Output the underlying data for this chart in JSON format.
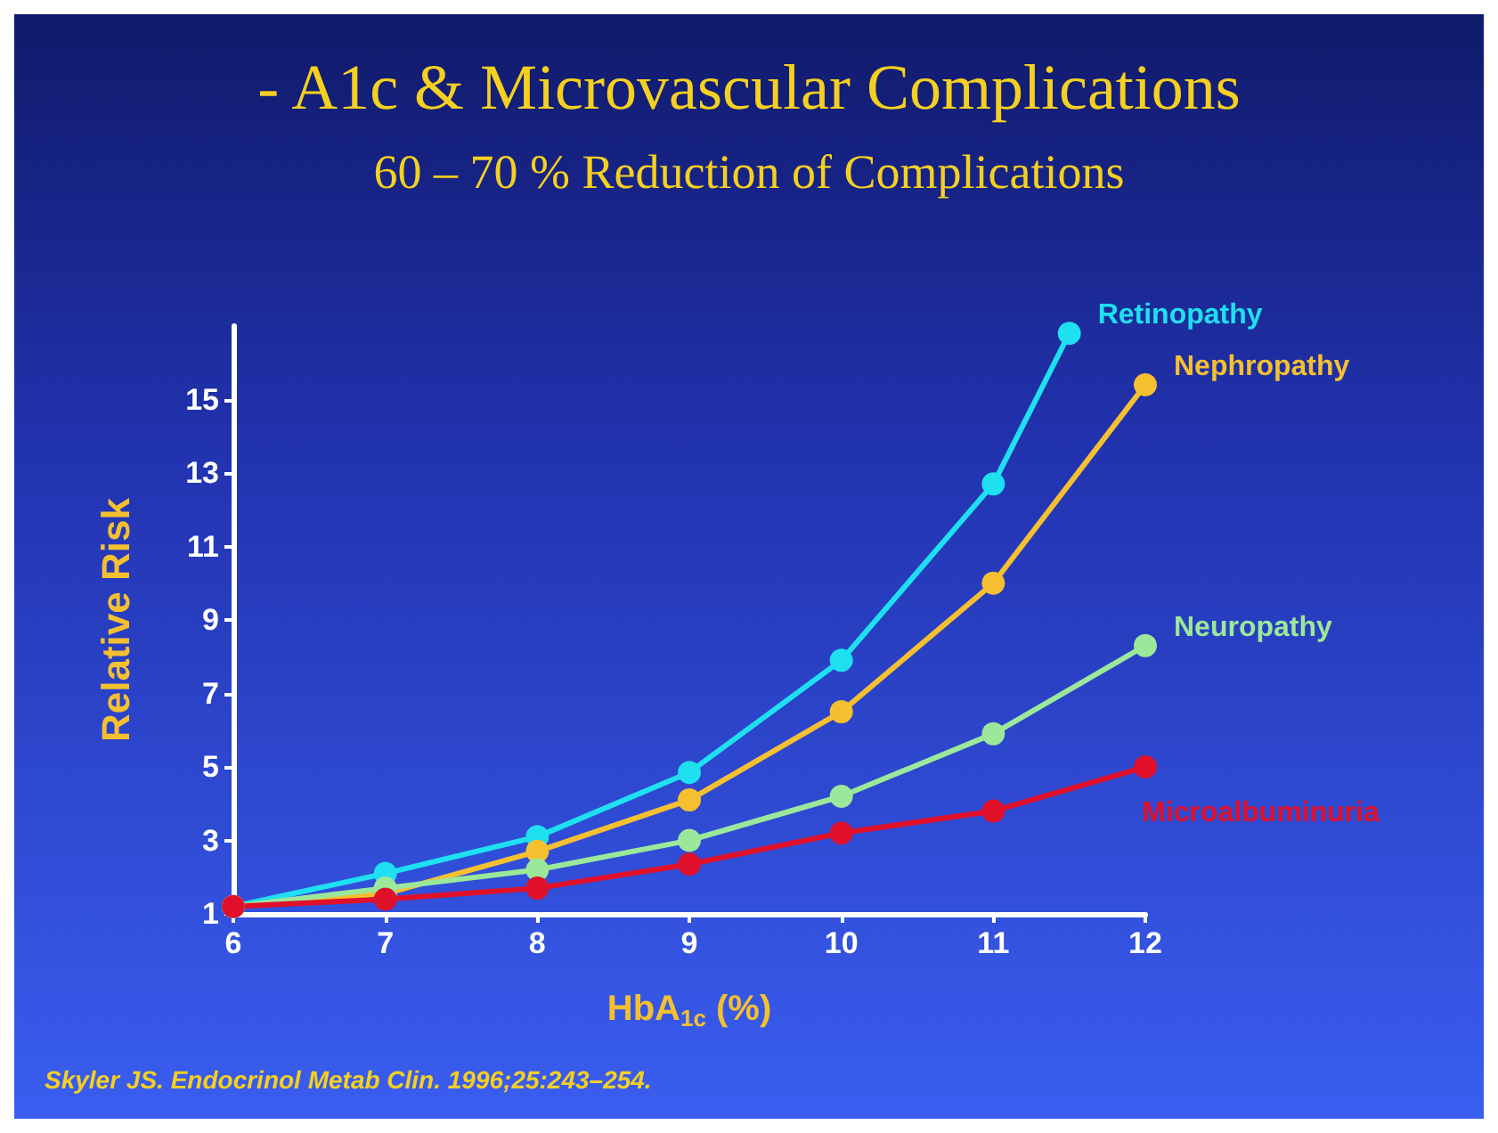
{
  "chart_data": {
    "type": "line",
    "title": "- A1c & Microvascular Complications",
    "subtitle": "60 – 70 % Reduction of Complications",
    "xlabel": "HbA$_{1c}$ (%)",
    "ylabel": "Relative Risk",
    "annotations": [
      "Skyler JS. Endocrinol Metab Clin. 1996;25:243–254."
    ],
    "x": [
      6,
      7,
      8,
      9,
      10,
      11,
      12
    ],
    "series": [
      {
        "name": "Retinopathy",
        "color": "#1ee0f0",
        "x": [
          6,
          7,
          8,
          9,
          10,
          11,
          11.5
        ],
        "values": [
          1.2,
          2.1,
          3.1,
          4.85,
          7.9,
          12.7,
          16.8
        ]
      },
      {
        "name": "Nephropathy",
        "color": "#f5c030",
        "values": [
          1.2,
          1.55,
          2.7,
          4.1,
          6.5,
          10.0,
          15.4
        ]
      },
      {
        "name": "Neuropathy",
        "color": "#9be89a",
        "values": [
          1.2,
          1.7,
          2.2,
          3.0,
          4.2,
          5.9,
          8.3
        ]
      },
      {
        "name": "Microalbuminuria",
        "color": "#e0102a",
        "values": [
          1.2,
          1.4,
          1.7,
          2.35,
          3.2,
          3.8,
          5.0
        ]
      }
    ],
    "xlim": [
      6,
      12
    ],
    "xticks": [
      6,
      7,
      8,
      9,
      10,
      11,
      12
    ],
    "ylim": [
      1,
      17
    ],
    "yticks": [
      1,
      3,
      5,
      7,
      9,
      11,
      13,
      15
    ],
    "grid": false,
    "legend": false,
    "marker": "circle",
    "line_style": "solid"
  }
}
